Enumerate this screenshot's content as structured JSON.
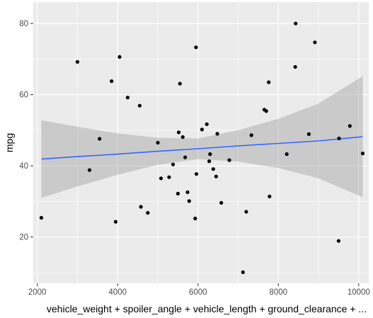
{
  "chart_data": {
    "type": "scatter",
    "xlabel": "vehicle_weight + spoiler_angle + vehicle_length + ground_clearance + ...",
    "ylabel": "mpg",
    "xlim": [
      1900,
      10250
    ],
    "ylim": [
      7,
      86
    ],
    "x_ticks": [
      2000,
      4000,
      6000,
      8000,
      10000
    ],
    "y_ticks": [
      20,
      40,
      60,
      80
    ],
    "x_tick_labels": [
      "2000",
      "4000",
      "6000",
      "8000",
      "10000"
    ],
    "y_tick_labels": [
      "20",
      "40",
      "60",
      "80"
    ],
    "grid": true,
    "panel_background": "#ebebeb",
    "grid_color": "#ffffff",
    "point_color": "#000000",
    "trend": {
      "method": "linear",
      "color": "#3366ff",
      "band_color": "#999999",
      "x": [
        2100,
        3000,
        4000,
        5000,
        6000,
        7000,
        8000,
        9000,
        10100
      ],
      "fit": [
        41.9,
        42.6,
        43.3,
        44.1,
        44.8,
        45.6,
        46.3,
        47.0,
        48.2
      ],
      "lower": [
        31.0,
        34.2,
        37.5,
        40.3,
        41.9,
        41.2,
        39.4,
        36.5,
        31.2
      ],
      "upper": [
        52.8,
        51.0,
        49.1,
        47.9,
        47.7,
        50.0,
        53.2,
        57.5,
        65.2
      ]
    },
    "points": [
      {
        "x": 2100,
        "y": 25.4
      },
      {
        "x": 3000,
        "y": 69.2
      },
      {
        "x": 3300,
        "y": 38.8
      },
      {
        "x": 3550,
        "y": 47.6
      },
      {
        "x": 3850,
        "y": 63.8
      },
      {
        "x": 3950,
        "y": 24.3
      },
      {
        "x": 4050,
        "y": 70.6
      },
      {
        "x": 4250,
        "y": 59.2
      },
      {
        "x": 4550,
        "y": 56.9
      },
      {
        "x": 4580,
        "y": 28.5
      },
      {
        "x": 4750,
        "y": 26.8
      },
      {
        "x": 5000,
        "y": 46.5
      },
      {
        "x": 5080,
        "y": 36.5
      },
      {
        "x": 5280,
        "y": 36.8
      },
      {
        "x": 5380,
        "y": 40.4
      },
      {
        "x": 5500,
        "y": 32.2
      },
      {
        "x": 5520,
        "y": 49.4
      },
      {
        "x": 5550,
        "y": 63.1
      },
      {
        "x": 5620,
        "y": 48.1
      },
      {
        "x": 5680,
        "y": 42.4
      },
      {
        "x": 5740,
        "y": 32.6
      },
      {
        "x": 5780,
        "y": 30.1
      },
      {
        "x": 5930,
        "y": 25.2
      },
      {
        "x": 5950,
        "y": 73.3
      },
      {
        "x": 5960,
        "y": 37.7
      },
      {
        "x": 6100,
        "y": 50.2
      },
      {
        "x": 6220,
        "y": 51.7
      },
      {
        "x": 6280,
        "y": 41.3
      },
      {
        "x": 6300,
        "y": 43.3
      },
      {
        "x": 6380,
        "y": 39.1
      },
      {
        "x": 6450,
        "y": 37.0
      },
      {
        "x": 6480,
        "y": 49.0
      },
      {
        "x": 6580,
        "y": 29.6
      },
      {
        "x": 6780,
        "y": 41.6
      },
      {
        "x": 7120,
        "y": 10.1
      },
      {
        "x": 7200,
        "y": 27.1
      },
      {
        "x": 7330,
        "y": 48.6
      },
      {
        "x": 7650,
        "y": 55.8
      },
      {
        "x": 7700,
        "y": 55.4
      },
      {
        "x": 7760,
        "y": 63.5
      },
      {
        "x": 7780,
        "y": 31.4
      },
      {
        "x": 8210,
        "y": 43.3
      },
      {
        "x": 8430,
        "y": 80.0
      },
      {
        "x": 8420,
        "y": 67.8
      },
      {
        "x": 8760,
        "y": 48.9
      },
      {
        "x": 8910,
        "y": 74.7
      },
      {
        "x": 9500,
        "y": 18.9
      },
      {
        "x": 9510,
        "y": 47.7
      },
      {
        "x": 9780,
        "y": 51.2
      },
      {
        "x": 10100,
        "y": 43.5
      }
    ]
  }
}
